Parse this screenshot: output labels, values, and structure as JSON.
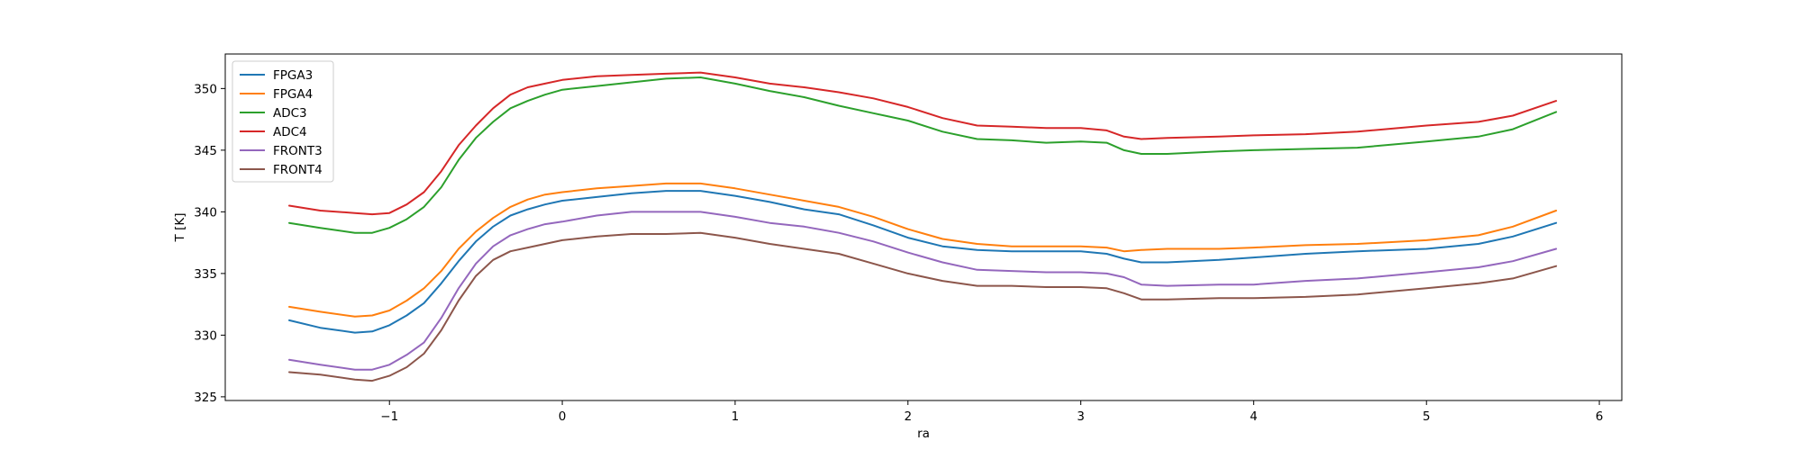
{
  "chart_data": {
    "type": "line",
    "title": "",
    "xlabel": "ra",
    "ylabel": "T [K]",
    "xlim": [
      -1.95,
      6.13
    ],
    "ylim": [
      324.7,
      352.8
    ],
    "xticks": [
      -1,
      0,
      1,
      2,
      3,
      4,
      5,
      6
    ],
    "xtick_labels": [
      "−1",
      "0",
      "1",
      "2",
      "3",
      "4",
      "5",
      "6"
    ],
    "yticks": [
      325,
      330,
      335,
      340,
      345,
      350
    ],
    "ytick_labels": [
      "325",
      "330",
      "335",
      "340",
      "345",
      "350"
    ],
    "grid": false,
    "legend_position": "upper-left",
    "series": [
      {
        "name": "FPGA3",
        "color": "#1f77b4",
        "x": [
          -1.58,
          -1.4,
          -1.2,
          -1.1,
          -1.0,
          -0.9,
          -0.8,
          -0.7,
          -0.6,
          -0.5,
          -0.4,
          -0.3,
          -0.2,
          -0.1,
          0.0,
          0.2,
          0.4,
          0.6,
          0.8,
          1.0,
          1.2,
          1.4,
          1.6,
          1.8,
          2.0,
          2.2,
          2.4,
          2.6,
          2.8,
          3.0,
          3.15,
          3.25,
          3.35,
          3.5,
          3.8,
          4.0,
          4.3,
          4.6,
          5.0,
          5.3,
          5.5,
          5.75
        ],
        "y": [
          331.2,
          330.6,
          330.2,
          330.3,
          330.8,
          331.6,
          332.6,
          334.2,
          336.0,
          337.6,
          338.8,
          339.7,
          340.2,
          340.6,
          340.9,
          341.2,
          341.5,
          341.7,
          341.7,
          341.3,
          340.8,
          340.2,
          339.8,
          338.9,
          337.9,
          337.2,
          336.9,
          336.8,
          336.8,
          336.8,
          336.6,
          336.2,
          335.9,
          335.9,
          336.1,
          336.3,
          336.6,
          336.8,
          337.0,
          337.4,
          338.0,
          339.1
        ]
      },
      {
        "name": "FPGA4",
        "color": "#ff7f0e",
        "x": [
          -1.58,
          -1.4,
          -1.2,
          -1.1,
          -1.0,
          -0.9,
          -0.8,
          -0.7,
          -0.6,
          -0.5,
          -0.4,
          -0.3,
          -0.2,
          -0.1,
          0.0,
          0.2,
          0.4,
          0.6,
          0.8,
          1.0,
          1.2,
          1.4,
          1.6,
          1.8,
          2.0,
          2.2,
          2.4,
          2.6,
          2.8,
          3.0,
          3.15,
          3.25,
          3.35,
          3.5,
          3.8,
          4.0,
          4.3,
          4.6,
          5.0,
          5.3,
          5.5,
          5.75
        ],
        "y": [
          332.3,
          331.9,
          331.5,
          331.6,
          332.0,
          332.8,
          333.8,
          335.2,
          337.0,
          338.4,
          339.5,
          340.4,
          341.0,
          341.4,
          341.6,
          341.9,
          342.1,
          342.3,
          342.3,
          341.9,
          341.4,
          340.9,
          340.4,
          339.6,
          338.6,
          337.8,
          337.4,
          337.2,
          337.2,
          337.2,
          337.1,
          336.8,
          336.9,
          337.0,
          337.0,
          337.1,
          337.3,
          337.4,
          337.7,
          338.1,
          338.8,
          340.1
        ]
      },
      {
        "name": "ADC3",
        "color": "#2ca02c",
        "x": [
          -1.58,
          -1.4,
          -1.2,
          -1.1,
          -1.0,
          -0.9,
          -0.8,
          -0.7,
          -0.6,
          -0.5,
          -0.4,
          -0.3,
          -0.2,
          -0.1,
          0.0,
          0.2,
          0.4,
          0.6,
          0.8,
          1.0,
          1.2,
          1.4,
          1.6,
          1.8,
          2.0,
          2.2,
          2.4,
          2.6,
          2.8,
          3.0,
          3.15,
          3.25,
          3.35,
          3.5,
          3.8,
          4.0,
          4.3,
          4.6,
          5.0,
          5.3,
          5.5,
          5.75
        ],
        "y": [
          339.1,
          338.7,
          338.3,
          338.3,
          338.7,
          339.4,
          340.4,
          342.0,
          344.2,
          346.0,
          347.3,
          348.4,
          349.0,
          349.5,
          349.9,
          350.2,
          350.5,
          350.8,
          350.9,
          350.4,
          349.8,
          349.3,
          348.6,
          348.0,
          347.4,
          346.5,
          345.9,
          345.8,
          345.6,
          345.7,
          345.6,
          345.0,
          344.7,
          344.7,
          344.9,
          345.0,
          345.1,
          345.2,
          345.7,
          346.1,
          346.7,
          348.1
        ]
      },
      {
        "name": "ADC4",
        "color": "#d62728",
        "x": [
          -1.58,
          -1.4,
          -1.2,
          -1.1,
          -1.0,
          -0.9,
          -0.8,
          -0.7,
          -0.6,
          -0.5,
          -0.4,
          -0.3,
          -0.2,
          -0.1,
          0.0,
          0.2,
          0.4,
          0.6,
          0.8,
          1.0,
          1.2,
          1.4,
          1.6,
          1.8,
          2.0,
          2.2,
          2.4,
          2.6,
          2.8,
          3.0,
          3.15,
          3.25,
          3.35,
          3.5,
          3.8,
          4.0,
          4.3,
          4.6,
          5.0,
          5.3,
          5.5,
          5.75
        ],
        "y": [
          340.5,
          340.1,
          339.9,
          339.8,
          339.9,
          340.6,
          341.6,
          343.3,
          345.4,
          347.0,
          348.4,
          349.5,
          350.1,
          350.4,
          350.7,
          351.0,
          351.1,
          351.2,
          351.3,
          350.9,
          350.4,
          350.1,
          349.7,
          349.2,
          348.5,
          347.6,
          347.0,
          346.9,
          346.8,
          346.8,
          346.6,
          346.1,
          345.9,
          346.0,
          346.1,
          346.2,
          346.3,
          346.5,
          347.0,
          347.3,
          347.8,
          349.0
        ]
      },
      {
        "name": "FRONT3",
        "color": "#9467bd",
        "x": [
          -1.58,
          -1.4,
          -1.2,
          -1.1,
          -1.0,
          -0.9,
          -0.8,
          -0.7,
          -0.6,
          -0.5,
          -0.4,
          -0.3,
          -0.2,
          -0.1,
          0.0,
          0.2,
          0.4,
          0.6,
          0.8,
          1.0,
          1.2,
          1.4,
          1.6,
          1.8,
          2.0,
          2.2,
          2.4,
          2.6,
          2.8,
          3.0,
          3.15,
          3.25,
          3.35,
          3.5,
          3.8,
          4.0,
          4.3,
          4.6,
          5.0,
          5.3,
          5.5,
          5.75
        ],
        "y": [
          328.0,
          327.6,
          327.2,
          327.2,
          327.6,
          328.4,
          329.4,
          331.4,
          333.8,
          335.8,
          337.2,
          338.1,
          338.6,
          339.0,
          339.2,
          339.7,
          340.0,
          340.0,
          340.0,
          339.6,
          339.1,
          338.8,
          338.3,
          337.6,
          336.7,
          335.9,
          335.3,
          335.2,
          335.1,
          335.1,
          335.0,
          334.7,
          334.1,
          334.0,
          334.1,
          334.1,
          334.4,
          334.6,
          335.1,
          335.5,
          336.0,
          337.0
        ]
      },
      {
        "name": "FRONT4",
        "color": "#8c564b",
        "x": [
          -1.58,
          -1.4,
          -1.2,
          -1.1,
          -1.0,
          -0.9,
          -0.8,
          -0.7,
          -0.6,
          -0.5,
          -0.4,
          -0.3,
          -0.2,
          -0.1,
          0.0,
          0.2,
          0.4,
          0.6,
          0.8,
          1.0,
          1.2,
          1.4,
          1.6,
          1.8,
          2.0,
          2.2,
          2.4,
          2.6,
          2.8,
          3.0,
          3.15,
          3.25,
          3.35,
          3.5,
          3.8,
          4.0,
          4.3,
          4.6,
          5.0,
          5.3,
          5.5,
          5.75
        ],
        "y": [
          327.0,
          326.8,
          326.4,
          326.3,
          326.7,
          327.4,
          328.5,
          330.4,
          332.8,
          334.8,
          336.1,
          336.8,
          337.1,
          337.4,
          337.7,
          338.0,
          338.2,
          338.2,
          338.3,
          337.9,
          337.4,
          337.0,
          336.6,
          335.8,
          335.0,
          334.4,
          334.0,
          334.0,
          333.9,
          333.9,
          333.8,
          333.4,
          332.9,
          332.9,
          333.0,
          333.0,
          333.1,
          333.3,
          333.8,
          334.2,
          334.6,
          335.6
        ]
      }
    ]
  }
}
